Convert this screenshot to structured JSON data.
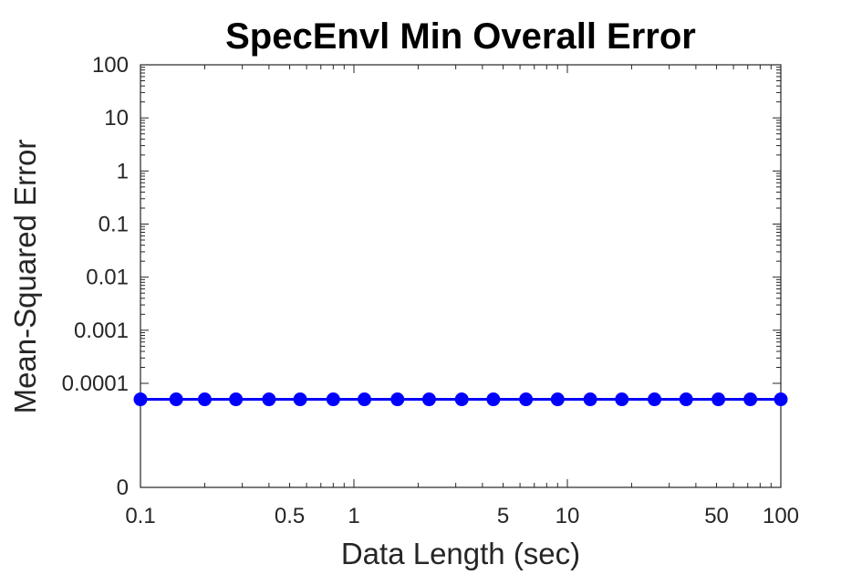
{
  "chart_data": {
    "type": "line",
    "title": "SpecEnvl Min Overall Error",
    "xlabel": "Data Length (sec)",
    "ylabel": "Mean-Squared Error",
    "x_scale": "log",
    "y_scale": "log",
    "xlim": [
      0.1,
      100
    ],
    "ylim": [
      0,
      100
    ],
    "x_ticks": [
      {
        "value": 0.1,
        "label": "0.1"
      },
      {
        "value": 0.5,
        "label": "0.5"
      },
      {
        "value": 1,
        "label": "1"
      },
      {
        "value": 5,
        "label": "5"
      },
      {
        "value": 10,
        "label": "10"
      },
      {
        "value": 50,
        "label": "50"
      },
      {
        "value": 100,
        "label": "100"
      }
    ],
    "y_ticks": [
      {
        "value": 100,
        "label": "100"
      },
      {
        "value": 10,
        "label": "10"
      },
      {
        "value": 1,
        "label": "1"
      },
      {
        "value": 0.1,
        "label": "0.1"
      },
      {
        "value": 0.01,
        "label": "0.01"
      },
      {
        "value": 0.001,
        "label": "0.001"
      },
      {
        "value": 0.0001,
        "label": "0.0001"
      },
      {
        "value": 0,
        "label": "0"
      }
    ],
    "grid": false,
    "series": [
      {
        "color": "#0000ff",
        "marker": "circle",
        "x": [
          0.1,
          0.147,
          0.2,
          0.28,
          0.4,
          0.56,
          0.8,
          1.12,
          1.6,
          2.25,
          3.2,
          4.5,
          6.4,
          9,
          12.8,
          18,
          25.6,
          36,
          51,
          72,
          100
        ],
        "y": [
          5e-05,
          5e-05,
          5e-05,
          5e-05,
          5e-05,
          5e-05,
          5e-05,
          5e-05,
          5e-05,
          5e-05,
          5e-05,
          5e-05,
          5e-05,
          5e-05,
          5e-05,
          5e-05,
          5e-05,
          5e-05,
          5e-05,
          5e-05,
          5e-05
        ]
      }
    ]
  }
}
